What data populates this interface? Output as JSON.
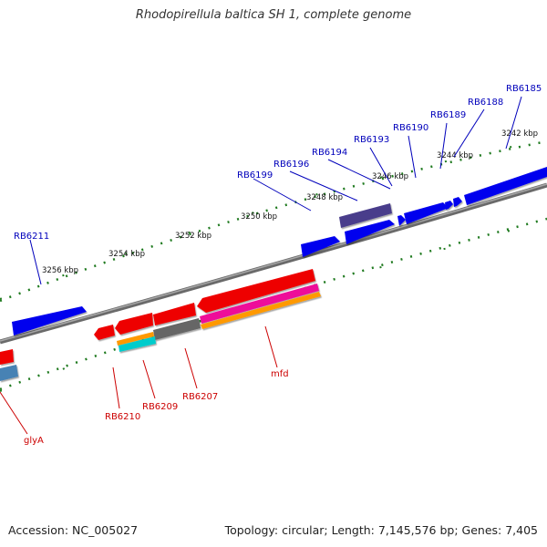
{
  "title": "Rhodopirellula baltica SH 1, complete genome",
  "footer": {
    "accession": "Accession: NC_005027",
    "summary": "Topology: circular; Length: 7,145,576 bp; Genes: 7,405"
  },
  "colors": {
    "backbone": "#808080",
    "tick": "#1f7a1f",
    "tick_label": "#111111",
    "gene_label_forward": "#0000bb",
    "gene_label_reverse": "#cc0000"
  },
  "ruler_forward": {
    "labels": [
      {
        "id": "3242",
        "text": "3242 kbp"
      },
      {
        "id": "3244",
        "text": "3244 kbp"
      },
      {
        "id": "3246",
        "text": "3246 kbp"
      },
      {
        "id": "3248",
        "text": "3248 kbp"
      },
      {
        "id": "3250",
        "text": "3250 kbp"
      },
      {
        "id": "3252",
        "text": "3252 kbp"
      },
      {
        "id": "3254",
        "text": "3254 kbp"
      },
      {
        "id": "3256",
        "text": "3256 kbp"
      }
    ]
  },
  "genes_forward": [
    {
      "id": "RB6185",
      "label": "RB6185",
      "color": "#0000ee"
    },
    {
      "id": "RB6188",
      "label": "RB6188",
      "color": "#0000ee"
    },
    {
      "id": "RB6189",
      "label": "RB6189",
      "color": "#0000ee"
    },
    {
      "id": "RB6190",
      "label": "RB6190",
      "color": "#0000ee"
    },
    {
      "id": "RB6193",
      "label": "RB6193",
      "color": "#483d8b"
    },
    {
      "id": "RB6194",
      "label": "RB6194",
      "color": "#0000ee"
    },
    {
      "id": "RB6196",
      "label": "RB6196",
      "color": "#0000ee"
    },
    {
      "id": "RB6199",
      "label": "RB6199",
      "color": "#0000ee"
    },
    {
      "id": "RB6211",
      "label": "RB6211",
      "color": "#0000ee"
    }
  ],
  "genes_reverse": [
    {
      "id": "mfd",
      "label": "mfd",
      "color": "#ee0000"
    },
    {
      "id": "RB6207",
      "label": "RB6207",
      "color": "#ee0000"
    },
    {
      "id": "RB6209",
      "label": "RB6209",
      "color": "#ee0000"
    },
    {
      "id": "RB6210",
      "label": "RB6210",
      "color": "#ee0000"
    },
    {
      "id": "glyA",
      "label": "glyA",
      "color": "#ee0000"
    }
  ],
  "features_other": [
    {
      "id": "magenta",
      "color": "#ee1199"
    },
    {
      "id": "orange",
      "color": "#ff9900"
    },
    {
      "id": "gray",
      "color": "#666666"
    },
    {
      "id": "cyan",
      "color": "#00cccc"
    },
    {
      "id": "steelblue",
      "color": "#4682b4"
    }
  ]
}
